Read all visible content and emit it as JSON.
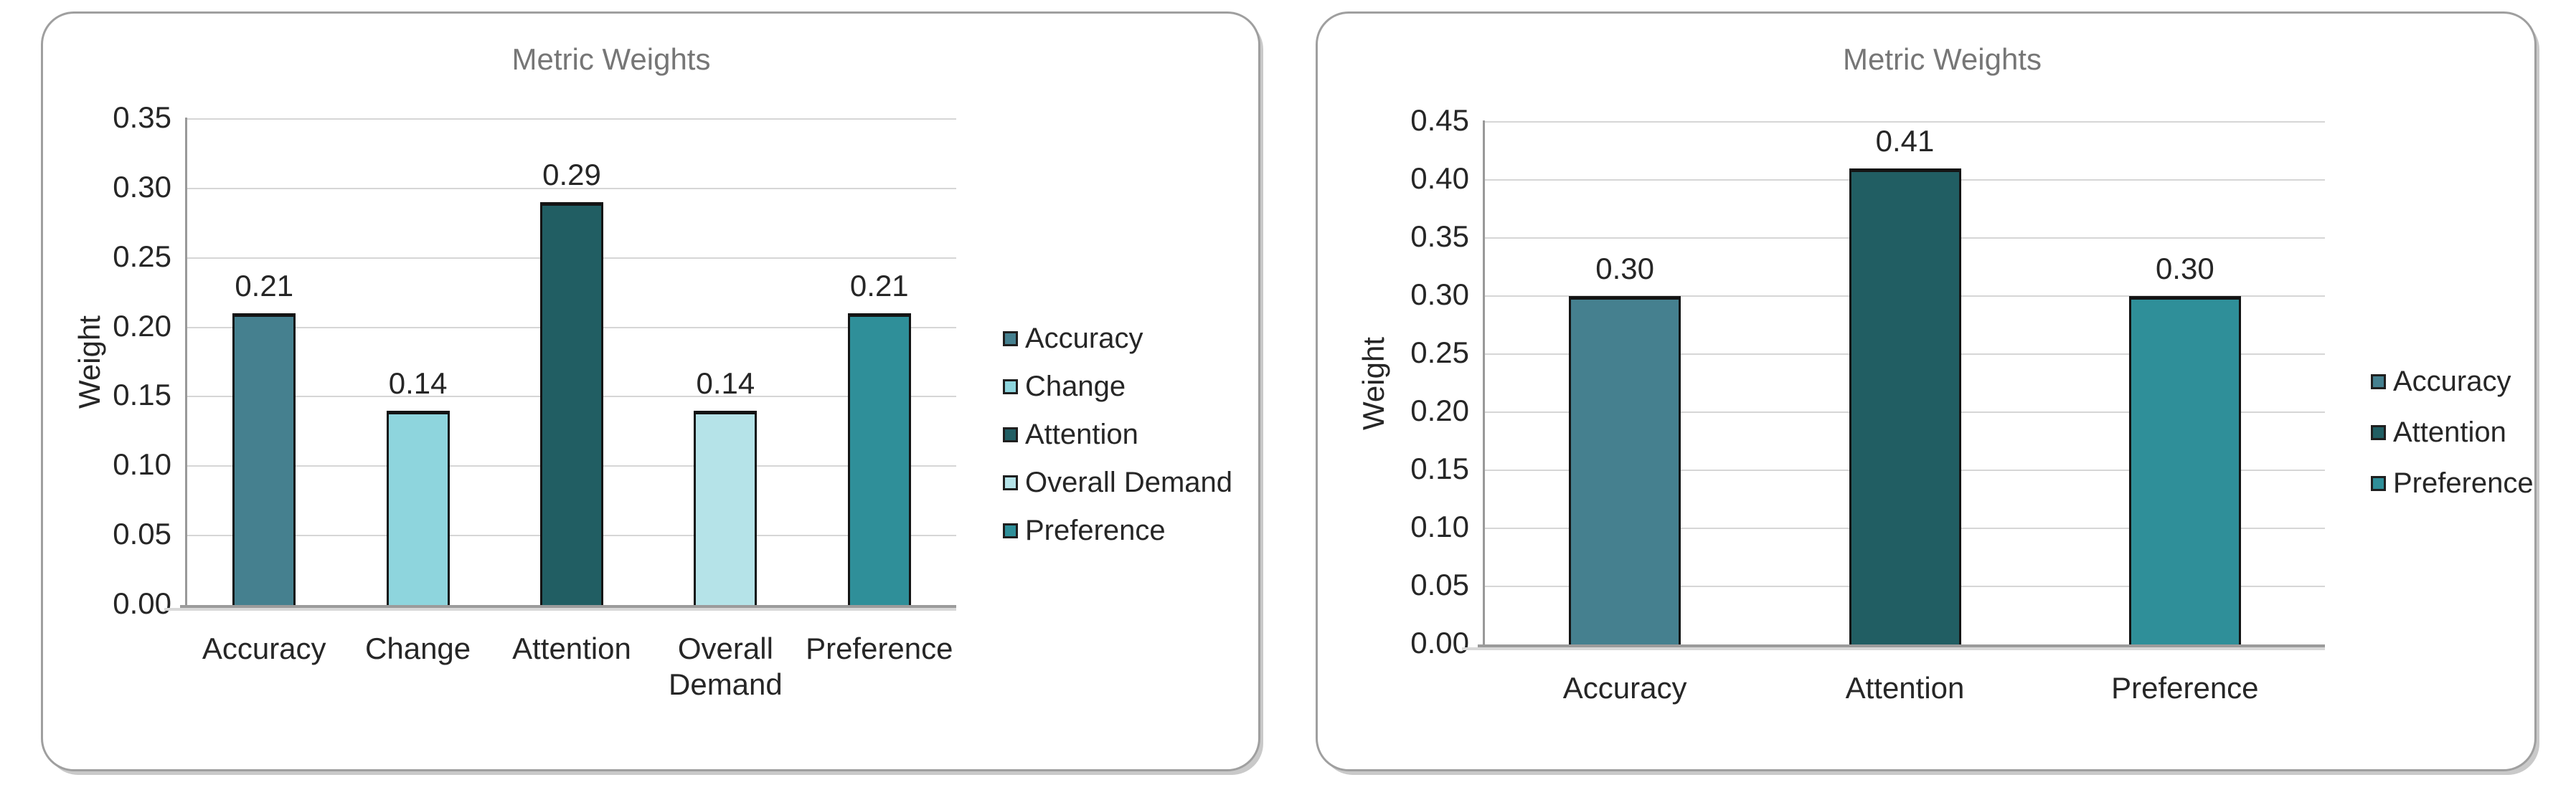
{
  "page": {
    "background": "#ffffff"
  },
  "styles": {
    "title_color": "#767676",
    "text_color": "#262626",
    "grid_color": "#d6d6d6",
    "axis_color": "#999999",
    "baseline_color": "#9b9b9b",
    "bar_border_color": "#141414",
    "card_border_color": "#9f9f9f"
  },
  "chart_data": [
    {
      "type": "bar",
      "title": "Metric Weights",
      "xlabel": "",
      "ylabel": "Weight",
      "categories": [
        "Accuracy",
        "Change",
        "Attention",
        "Overall Demand",
        "Preference"
      ],
      "values": [
        0.21,
        0.14,
        0.29,
        0.14,
        0.21
      ],
      "bar_labels": [
        "0.21",
        "0.14",
        "0.29",
        "0.14",
        "0.21"
      ],
      "bar_colors": [
        "#45808f",
        "#8ed5dd",
        "#215e63",
        "#b5e3e8",
        "#2f8f99"
      ],
      "legend_entries": [
        "Accuracy",
        "Change",
        "Attention",
        "Overall Demand",
        "Preference"
      ],
      "legend_position": "right",
      "ylim": [
        0,
        0.35
      ],
      "ytick_step": 0.05,
      "yticks": [
        "0.00",
        "0.05",
        "0.10",
        "0.15",
        "0.20",
        "0.25",
        "0.30",
        "0.35"
      ],
      "grid": true
    },
    {
      "type": "bar",
      "title": "Metric Weights",
      "xlabel": "",
      "ylabel": "Weight",
      "categories": [
        "Accuracy",
        "Attention",
        "Preference"
      ],
      "values": [
        0.3,
        0.41,
        0.3
      ],
      "bar_labels": [
        "0.30",
        "0.41",
        "0.30"
      ],
      "bar_colors": [
        "#45808f",
        "#215e63",
        "#2f8f99"
      ],
      "legend_entries": [
        "Accuracy",
        "Attention",
        "Preference"
      ],
      "legend_position": "right",
      "ylim": [
        0,
        0.45
      ],
      "ytick_step": 0.05,
      "yticks": [
        "0.00",
        "0.05",
        "0.10",
        "0.15",
        "0.20",
        "0.25",
        "0.30",
        "0.35",
        "0.40",
        "0.45"
      ],
      "grid": true
    }
  ]
}
